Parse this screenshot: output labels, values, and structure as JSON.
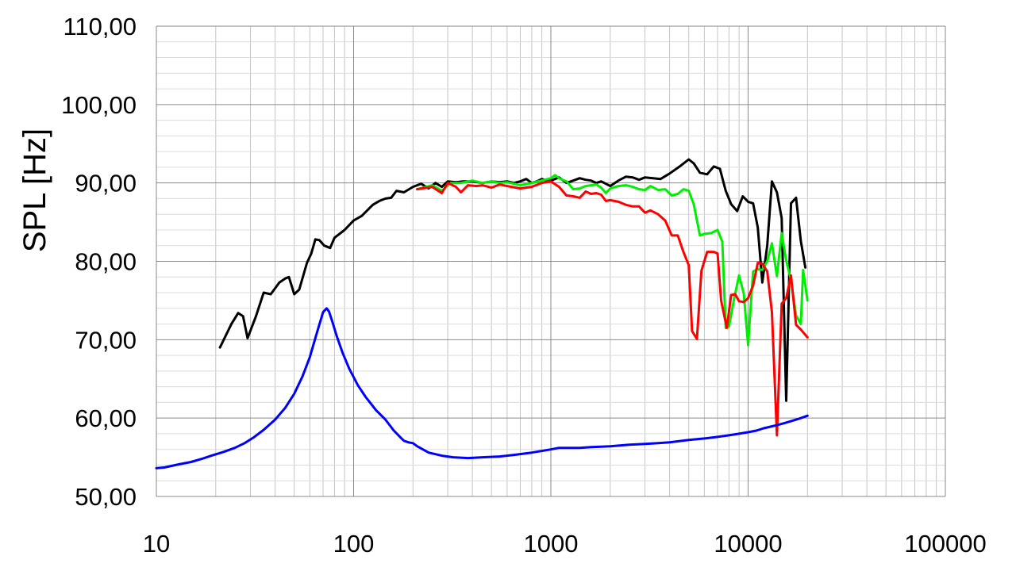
{
  "chart_data": {
    "type": "line",
    "title": "",
    "xlabel": "",
    "ylabel": "SPL [Hz]",
    "x_scale": "log",
    "xlim": [
      10,
      100000
    ],
    "ylim": [
      50,
      110
    ],
    "grid": true,
    "x_ticks": [
      10,
      100,
      1000,
      10000,
      100000
    ],
    "x_tick_labels": [
      "10",
      "100",
      "1000",
      "10000",
      "100000"
    ],
    "y_ticks": [
      50,
      60,
      70,
      80,
      90,
      100,
      110
    ],
    "y_tick_labels": [
      "50,00",
      "60,00",
      "70,00",
      "80,00",
      "90,00",
      "100,00",
      "110,00"
    ],
    "series": [
      {
        "color": "#000000",
        "points": [
          [
            21,
            69
          ],
          [
            24,
            72
          ],
          [
            26,
            73.4
          ],
          [
            27.5,
            73
          ],
          [
            29,
            70.2
          ],
          [
            32,
            73
          ],
          [
            35,
            76
          ],
          [
            38,
            75.8
          ],
          [
            42,
            77.3
          ],
          [
            45,
            77.8
          ],
          [
            47,
            78
          ],
          [
            50,
            75.8
          ],
          [
            53,
            76.4
          ],
          [
            58,
            79.8
          ],
          [
            61,
            81
          ],
          [
            64,
            82.8
          ],
          [
            67,
            82.7
          ],
          [
            71,
            82
          ],
          [
            76,
            81.7
          ],
          [
            80,
            83
          ],
          [
            90,
            84
          ],
          [
            100,
            85.2
          ],
          [
            110,
            85.8
          ],
          [
            125,
            87.2
          ],
          [
            135,
            87.7
          ],
          [
            145,
            88
          ],
          [
            155,
            88.1
          ],
          [
            165,
            89
          ],
          [
            180,
            88.8
          ],
          [
            200,
            89.5
          ],
          [
            220,
            89.9
          ],
          [
            240,
            89.3
          ],
          [
            260,
            90
          ],
          [
            280,
            89.5
          ],
          [
            300,
            90.2
          ],
          [
            330,
            90.1
          ],
          [
            360,
            90.2
          ],
          [
            400,
            90.2
          ],
          [
            450,
            90
          ],
          [
            500,
            90.2
          ],
          [
            550,
            90.1
          ],
          [
            600,
            90.2
          ],
          [
            650,
            90
          ],
          [
            700,
            90.2
          ],
          [
            750,
            90.5
          ],
          [
            800,
            90
          ],
          [
            850,
            90.2
          ],
          [
            900,
            90.5
          ],
          [
            950,
            90.3
          ],
          [
            1000,
            90.3
          ],
          [
            1100,
            90.7
          ],
          [
            1200,
            90
          ],
          [
            1300,
            90.3
          ],
          [
            1400,
            90.6
          ],
          [
            1500,
            90.4
          ],
          [
            1600,
            90.3
          ],
          [
            1700,
            90
          ],
          [
            1800,
            90.2
          ],
          [
            2000,
            89.6
          ],
          [
            2200,
            90.3
          ],
          [
            2400,
            90.8
          ],
          [
            2600,
            90.7
          ],
          [
            2800,
            90.4
          ],
          [
            3000,
            90.7
          ],
          [
            3300,
            90.6
          ],
          [
            3600,
            90.5
          ],
          [
            4000,
            91.2
          ],
          [
            4500,
            92.1
          ],
          [
            5000,
            93
          ],
          [
            5300,
            92.5
          ],
          [
            5700,
            91.3
          ],
          [
            6200,
            91.1
          ],
          [
            6700,
            92.1
          ],
          [
            7200,
            91.8
          ],
          [
            7700,
            89
          ],
          [
            8200,
            87.3
          ],
          [
            8800,
            86.4
          ],
          [
            9400,
            88.3
          ],
          [
            10000,
            87.6
          ],
          [
            10600,
            87.4
          ],
          [
            11200,
            84.3
          ],
          [
            11800,
            77.3
          ],
          [
            12500,
            82
          ],
          [
            13200,
            90.2
          ],
          [
            14000,
            88.8
          ],
          [
            14800,
            85.5
          ],
          [
            15600,
            62.2
          ],
          [
            16500,
            87.4
          ],
          [
            17500,
            88.1
          ],
          [
            18500,
            82.6
          ],
          [
            19500,
            79.2
          ]
        ]
      },
      {
        "color": "#00ee00",
        "points": [
          [
            210,
            89.2
          ],
          [
            250,
            89.7
          ],
          [
            280,
            89
          ],
          [
            310,
            90
          ],
          [
            350,
            90
          ],
          [
            400,
            90.3
          ],
          [
            450,
            90
          ],
          [
            500,
            90.2
          ],
          [
            550,
            90
          ],
          [
            600,
            90.1
          ],
          [
            700,
            89.7
          ],
          [
            800,
            90
          ],
          [
            900,
            90.3
          ],
          [
            1000,
            90.6
          ],
          [
            1050,
            91
          ],
          [
            1100,
            90.6
          ],
          [
            1200,
            90.2
          ],
          [
            1300,
            89.2
          ],
          [
            1400,
            89.3
          ],
          [
            1500,
            89.6
          ],
          [
            1600,
            89.7
          ],
          [
            1700,
            89.8
          ],
          [
            1800,
            89.4
          ],
          [
            1900,
            88.7
          ],
          [
            2000,
            89.3
          ],
          [
            2200,
            89.6
          ],
          [
            2400,
            89.7
          ],
          [
            2600,
            89.5
          ],
          [
            2800,
            89.2
          ],
          [
            3000,
            89.1
          ],
          [
            3200,
            89.6
          ],
          [
            3500,
            89.1
          ],
          [
            3800,
            89.2
          ],
          [
            4100,
            88.4
          ],
          [
            4400,
            88.6
          ],
          [
            4700,
            89.2
          ],
          [
            5000,
            89
          ],
          [
            5300,
            87.3
          ],
          [
            5700,
            83.3
          ],
          [
            6000,
            83.5
          ],
          [
            6500,
            83.6
          ],
          [
            7000,
            84
          ],
          [
            7400,
            82.5
          ],
          [
            7700,
            71.5
          ],
          [
            8000,
            71.7
          ],
          [
            8500,
            75.3
          ],
          [
            9000,
            78.2
          ],
          [
            9500,
            75.9
          ],
          [
            10000,
            69.3
          ],
          [
            10600,
            78.7
          ],
          [
            11200,
            79
          ],
          [
            11800,
            78.9
          ],
          [
            12500,
            80
          ],
          [
            13200,
            82.3
          ],
          [
            14000,
            78.1
          ],
          [
            14800,
            83.6
          ],
          [
            15600,
            80.1
          ],
          [
            16500,
            77.6
          ],
          [
            17500,
            73.1
          ],
          [
            18500,
            72
          ],
          [
            19000,
            78.9
          ],
          [
            20000,
            75
          ]
        ]
      },
      {
        "color": "#ff0000",
        "points": [
          [
            210,
            89.2
          ],
          [
            250,
            89.5
          ],
          [
            280,
            88.7
          ],
          [
            300,
            90
          ],
          [
            330,
            89.5
          ],
          [
            350,
            88.8
          ],
          [
            380,
            89.7
          ],
          [
            420,
            89.6
          ],
          [
            450,
            89.7
          ],
          [
            500,
            89.4
          ],
          [
            550,
            89.8
          ],
          [
            600,
            89.6
          ],
          [
            700,
            89.3
          ],
          [
            800,
            89.5
          ],
          [
            900,
            90
          ],
          [
            1000,
            90.2
          ],
          [
            1100,
            89.5
          ],
          [
            1200,
            88.4
          ],
          [
            1300,
            88.3
          ],
          [
            1400,
            88.1
          ],
          [
            1500,
            88.9
          ],
          [
            1600,
            88.6
          ],
          [
            1700,
            88.7
          ],
          [
            1800,
            88.5
          ],
          [
            1900,
            87.7
          ],
          [
            2000,
            87.8
          ],
          [
            2200,
            87.6
          ],
          [
            2400,
            87.2
          ],
          [
            2600,
            87
          ],
          [
            2800,
            87
          ],
          [
            3000,
            86.2
          ],
          [
            3200,
            86.5
          ],
          [
            3500,
            86
          ],
          [
            3800,
            85.2
          ],
          [
            4100,
            83.3
          ],
          [
            4400,
            83.3
          ],
          [
            4700,
            81.2
          ],
          [
            5000,
            79.5
          ],
          [
            5200,
            71.1
          ],
          [
            5500,
            70.1
          ],
          [
            5800,
            78.8
          ],
          [
            6200,
            81.2
          ],
          [
            6700,
            81.2
          ],
          [
            7000,
            81
          ],
          [
            7300,
            75
          ],
          [
            7800,
            71.5
          ],
          [
            8200,
            75.7
          ],
          [
            8600,
            75.8
          ],
          [
            9000,
            74.9
          ],
          [
            9500,
            74.8
          ],
          [
            10000,
            75.3
          ],
          [
            10600,
            76.9
          ],
          [
            11200,
            79.8
          ],
          [
            11800,
            79.7
          ],
          [
            12500,
            78.7
          ],
          [
            13200,
            73.5
          ],
          [
            14000,
            57.8
          ],
          [
            14800,
            74.6
          ],
          [
            15600,
            75.3
          ],
          [
            16500,
            78.2
          ],
          [
            17500,
            71.9
          ],
          [
            18500,
            71.3
          ],
          [
            20000,
            70.3
          ]
        ]
      },
      {
        "color": "#0000ff",
        "points": [
          [
            10,
            53.6
          ],
          [
            11,
            53.7
          ],
          [
            13,
            54.1
          ],
          [
            15,
            54.4
          ],
          [
            17,
            54.8
          ],
          [
            19,
            55.2
          ],
          [
            22,
            55.7
          ],
          [
            25,
            56.2
          ],
          [
            28,
            56.8
          ],
          [
            31,
            57.5
          ],
          [
            35,
            58.5
          ],
          [
            40,
            59.8
          ],
          [
            45,
            61.3
          ],
          [
            50,
            63.1
          ],
          [
            55,
            65.3
          ],
          [
            60,
            67.8
          ],
          [
            65,
            70.8
          ],
          [
            70,
            73.5
          ],
          [
            73,
            74
          ],
          [
            75,
            73.6
          ],
          [
            78,
            72.3
          ],
          [
            82,
            70.5
          ],
          [
            88,
            68.3
          ],
          [
            95,
            66.3
          ],
          [
            105,
            64.2
          ],
          [
            115,
            62.7
          ],
          [
            130,
            61
          ],
          [
            145,
            59.8
          ],
          [
            160,
            58.4
          ],
          [
            175,
            57.4
          ],
          [
            180,
            57.1
          ],
          [
            190,
            56.9
          ],
          [
            200,
            56.8
          ],
          [
            210,
            56.4
          ],
          [
            240,
            55.6
          ],
          [
            280,
            55.2
          ],
          [
            320,
            55
          ],
          [
            380,
            54.9
          ],
          [
            450,
            55
          ],
          [
            550,
            55.1
          ],
          [
            650,
            55.3
          ],
          [
            800,
            55.6
          ],
          [
            1000,
            56
          ],
          [
            1100,
            56.2
          ],
          [
            1200,
            56.2
          ],
          [
            1400,
            56.2
          ],
          [
            1600,
            56.3
          ],
          [
            2000,
            56.4
          ],
          [
            2500,
            56.6
          ],
          [
            3000,
            56.7
          ],
          [
            3500,
            56.8
          ],
          [
            4000,
            56.9
          ],
          [
            5000,
            57.2
          ],
          [
            6000,
            57.4
          ],
          [
            7000,
            57.6
          ],
          [
            8000,
            57.8
          ],
          [
            9000,
            58
          ],
          [
            10000,
            58.2
          ],
          [
            11000,
            58.4
          ],
          [
            12000,
            58.7
          ],
          [
            13000,
            58.9
          ],
          [
            14000,
            59.1
          ],
          [
            15000,
            59.3
          ],
          [
            16000,
            59.5
          ],
          [
            17000,
            59.7
          ],
          [
            18000,
            59.9
          ],
          [
            19000,
            60.1
          ],
          [
            20000,
            60.3
          ]
        ]
      }
    ]
  }
}
